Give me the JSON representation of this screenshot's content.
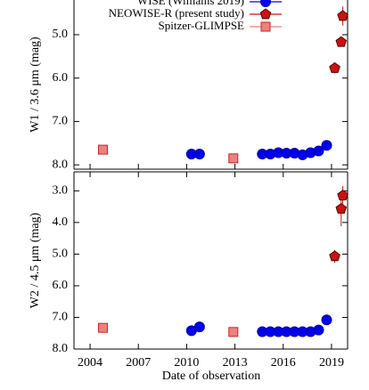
{
  "chart_data": [
    {
      "type": "scatter",
      "ylabel": "W1 / 3.6  μm (mag)",
      "ylim": [
        8.1,
        4.2
      ],
      "yticks": [
        {
          "value": 5,
          "label": "5.0"
        },
        {
          "value": 6,
          "label": "6.0"
        },
        {
          "value": 7,
          "label": "7.0"
        },
        {
          "value": 8,
          "label": "8.0"
        }
      ],
      "legend": "upper right",
      "series": [
        {
          "name": "WISE (Williams 2019)",
          "color": "#0000ee",
          "marker": "circle",
          "x": [
            2010.3,
            2010.8,
            2014.7,
            2015.2,
            2015.7,
            2016.2,
            2016.7,
            2017.2,
            2017.7,
            2018.2,
            2018.7
          ],
          "values": [
            7.75,
            7.75,
            7.75,
            7.75,
            7.72,
            7.73,
            7.73,
            7.77,
            7.72,
            7.68,
            7.55
          ]
        },
        {
          "name": "NEOWISE-R (present study)",
          "color": "#cc1111",
          "marker": "pentagon",
          "x": [
            2019.2,
            2019.6,
            2019.7
          ],
          "values": [
            5.77,
            5.17,
            4.57
          ],
          "errors": [
            0.12,
            0.1,
            0.22
          ]
        },
        {
          "name": "Spitzer-GLIMPSE",
          "color": "#f08080",
          "marker": "square",
          "x": [
            2004.8,
            2012.9
          ],
          "values": [
            7.65,
            7.85
          ]
        }
      ]
    },
    {
      "type": "scatter",
      "ylabel": "W2 / 4.5  μm (mag)",
      "xlabel": "Date of observation",
      "xlim": [
        2003,
        2020
      ],
      "xticks": [
        2004,
        2007,
        2010,
        2013,
        2016,
        2019
      ],
      "ylim": [
        8.0,
        2.4
      ],
      "yticks": [
        {
          "value": 3,
          "label": "3.0"
        },
        {
          "value": 4,
          "label": "4.0"
        },
        {
          "value": 5,
          "label": "5.0"
        },
        {
          "value": 6,
          "label": "6.0"
        },
        {
          "value": 7,
          "label": "7.0"
        },
        {
          "value": 8,
          "label": "8.0"
        }
      ],
      "series": [
        {
          "color": "#0000ee",
          "marker": "circle",
          "x": [
            2010.3,
            2010.8,
            2014.7,
            2015.2,
            2015.7,
            2016.2,
            2016.7,
            2017.2,
            2017.7,
            2018.2,
            2018.7
          ],
          "values": [
            7.42,
            7.3,
            7.45,
            7.45,
            7.45,
            7.45,
            7.45,
            7.45,
            7.45,
            7.4,
            7.08
          ]
        },
        {
          "color": "#cc1111",
          "marker": "pentagon",
          "x": [
            2019.2,
            2019.6,
            2019.7
          ],
          "values": [
            5.07,
            3.57,
            3.15
          ],
          "errors": [
            0.2,
            0.55,
            0.3
          ]
        },
        {
          "color": "#f08080",
          "marker": "square",
          "x": [
            2004.8,
            2012.9
          ],
          "values": [
            7.33,
            7.46
          ]
        }
      ]
    }
  ]
}
